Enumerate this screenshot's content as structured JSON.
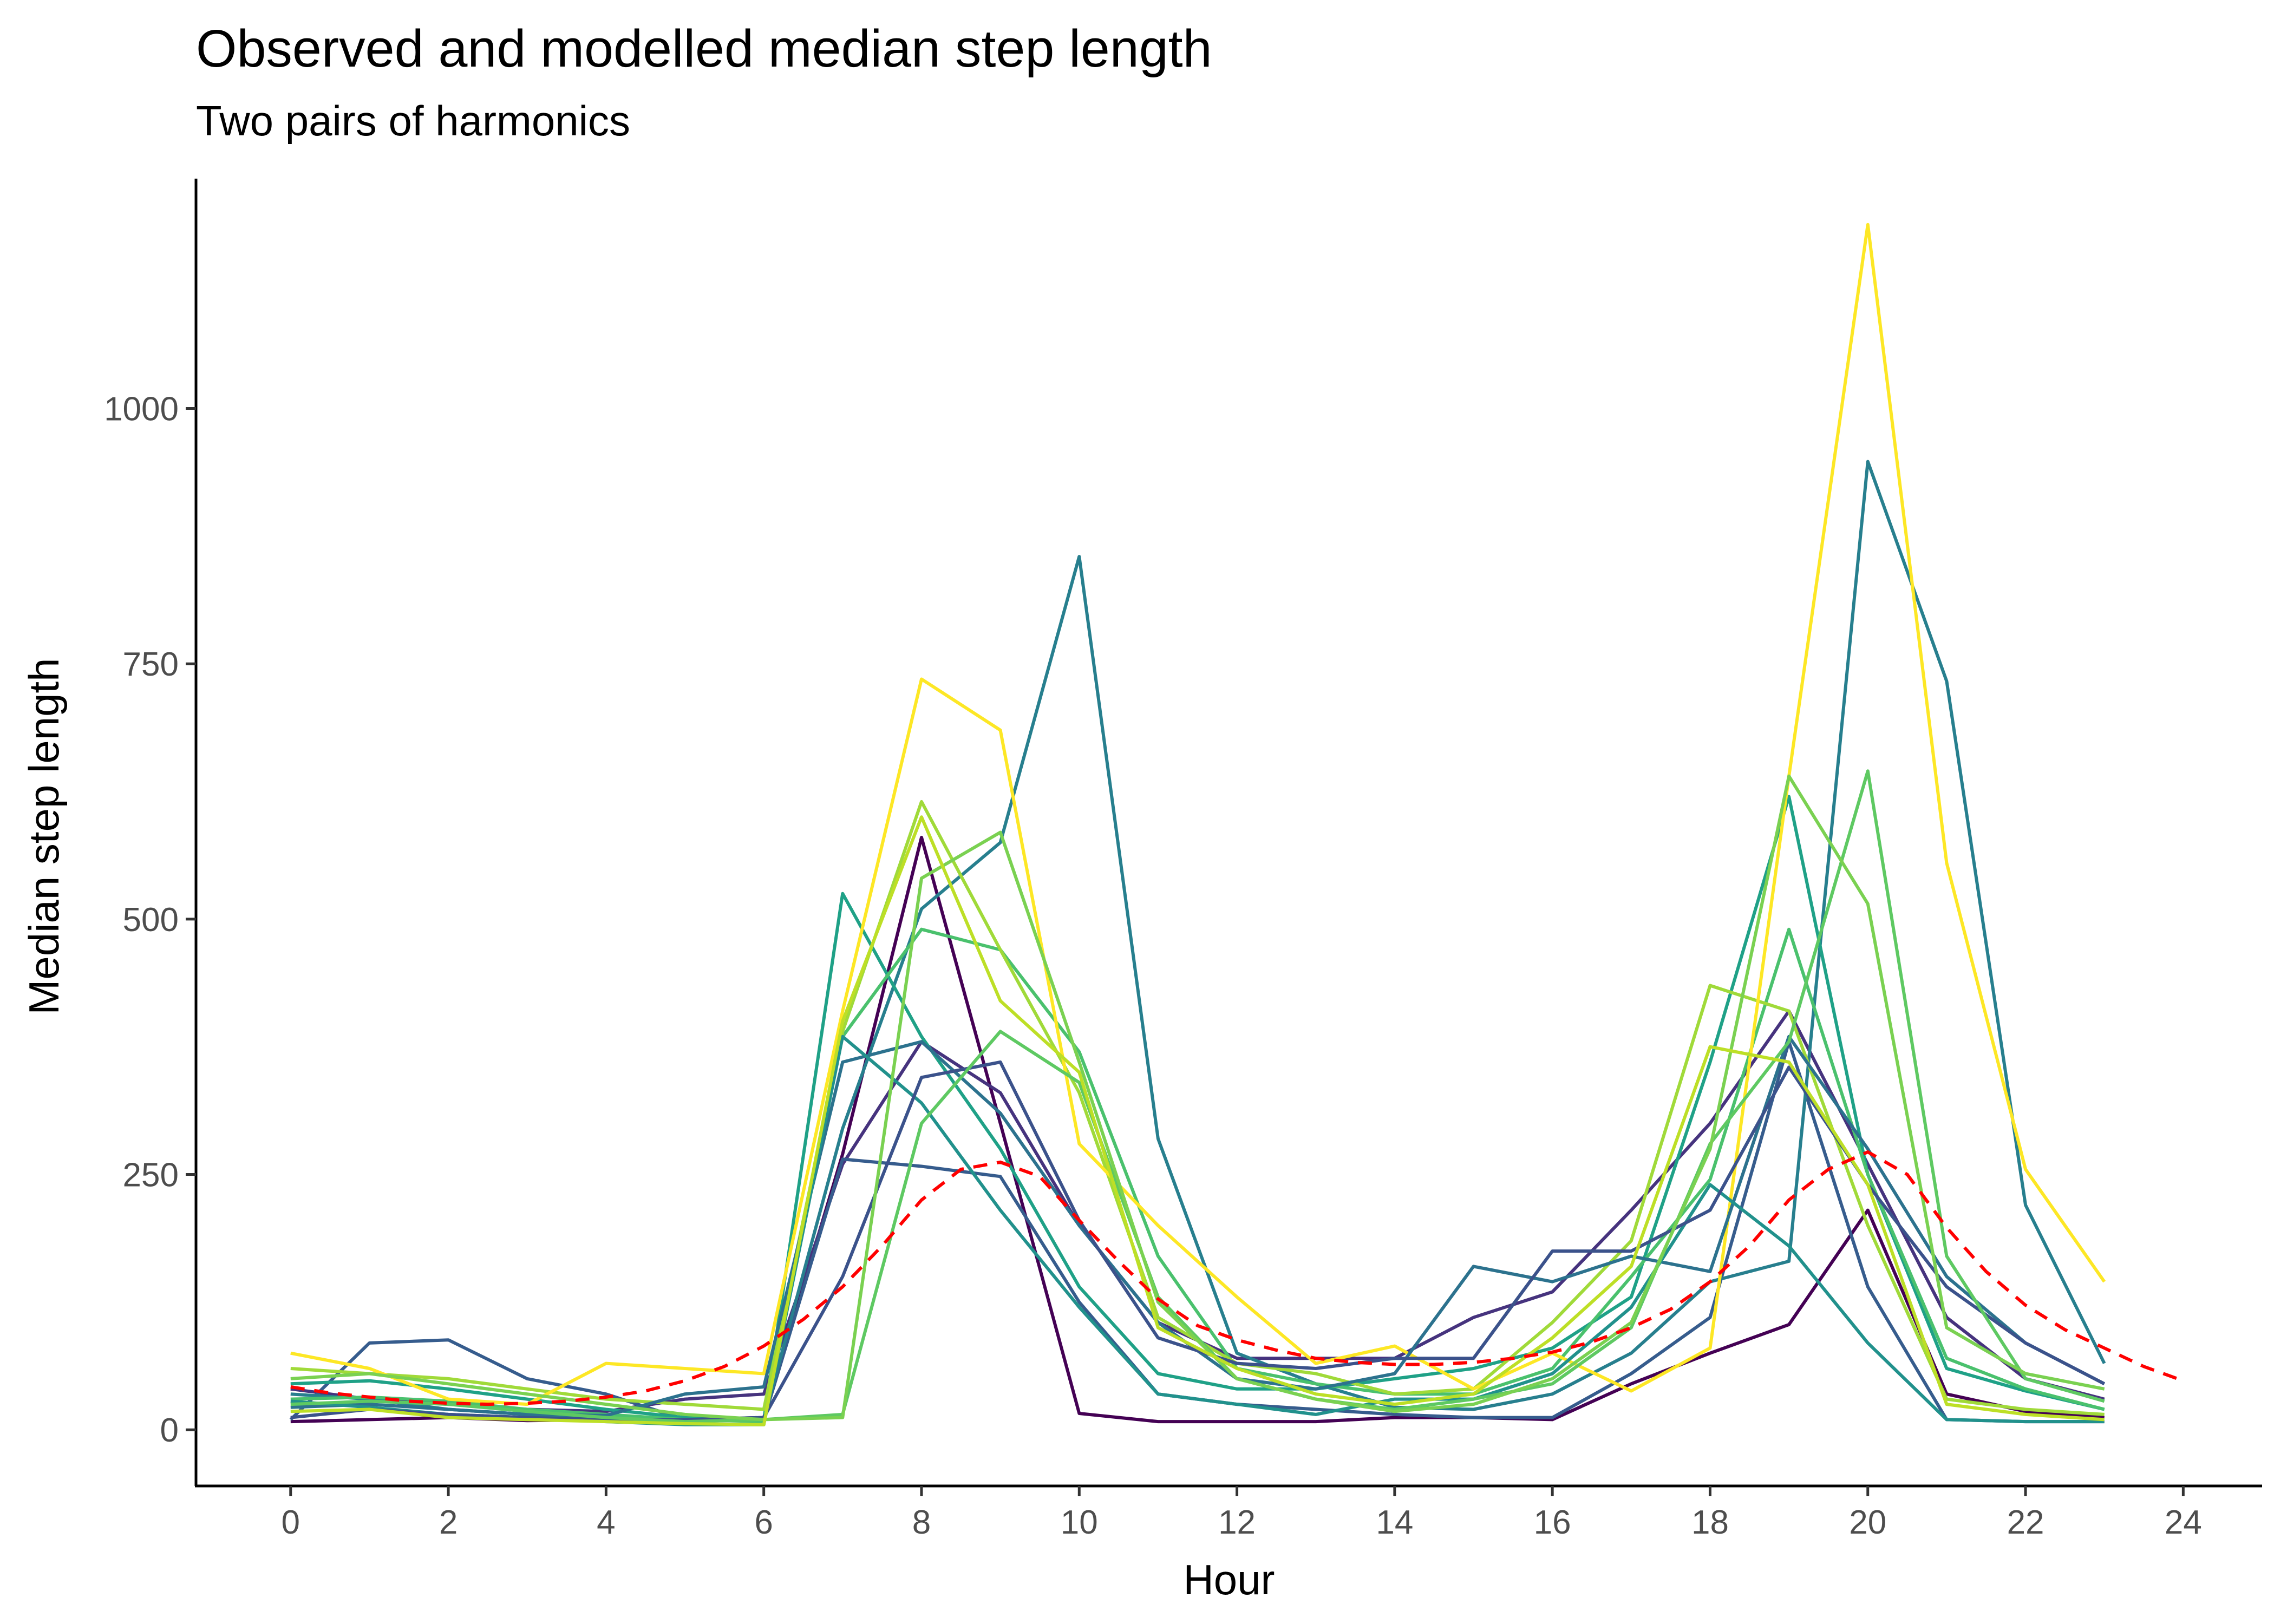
{
  "chart_data": {
    "type": "line",
    "title": "Observed and modelled median step length",
    "subtitle": "Two pairs of harmonics",
    "xlabel": "Hour",
    "ylabel": "Median step length",
    "xlim": [
      -1.2,
      25
    ],
    "ylim": [
      -55,
      1225
    ],
    "xticks": [
      "0",
      "2",
      "4",
      "6",
      "8",
      "10",
      "12",
      "14",
      "16",
      "18",
      "20",
      "22",
      "24"
    ],
    "yticks": [
      "0",
      "250",
      "500",
      "750",
      "1000"
    ],
    "x": [
      0,
      1,
      2,
      3,
      4,
      5,
      6,
      7,
      8,
      9,
      10,
      11,
      12,
      13,
      14,
      15,
      16,
      17,
      18,
      19,
      20,
      21,
      22,
      23
    ],
    "grid": false,
    "legend": "none",
    "series": [
      {
        "color": "#440154",
        "values": [
          8,
          10,
          12,
          9,
          10,
          10,
          12,
          270,
          580,
          300,
          16,
          8,
          8,
          8,
          12,
          12,
          10,
          45,
          75,
          103,
          215,
          35,
          18,
          12
        ]
      },
      {
        "color": "#46337e",
        "values": [
          40,
          30,
          25,
          20,
          18,
          30,
          35,
          260,
          380,
          330,
          200,
          105,
          70,
          70,
          70,
          110,
          135,
          215,
          300,
          410,
          260,
          110,
          50,
          30
        ]
      },
      {
        "color": "#365c8d",
        "values": [
          10,
          85,
          88,
          50,
          35,
          10,
          10,
          265,
          258,
          248,
          125,
          35,
          25,
          20,
          15,
          12,
          12,
          55,
          110,
          380,
          140,
          10,
          8,
          8
        ]
      },
      {
        "color": "#277f8e",
        "values": [
          35,
          30,
          20,
          15,
          12,
          8,
          10,
          295,
          510,
          575,
          855,
          285,
          75,
          45,
          22,
          20,
          35,
          75,
          145,
          165,
          948,
          733,
          220,
          65
        ]
      },
      {
        "color": "#1fa187",
        "values": [
          45,
          48,
          40,
          30,
          20,
          12,
          10,
          525,
          385,
          275,
          140,
          55,
          40,
          40,
          50,
          60,
          80,
          130,
          360,
          620,
          250,
          60,
          38,
          20
        ]
      },
      {
        "color": "#4ac16d",
        "values": [
          30,
          32,
          28,
          20,
          15,
          10,
          8,
          385,
          490,
          470,
          370,
          170,
          60,
          45,
          35,
          35,
          60,
          150,
          245,
          490,
          250,
          70,
          40,
          20
        ]
      },
      {
        "color": "#a0da39",
        "values": [
          60,
          55,
          50,
          40,
          30,
          25,
          20,
          390,
          615,
          470,
          330,
          110,
          65,
          55,
          35,
          40,
          105,
          185,
          435,
          410,
          200,
          30,
          20,
          15
        ]
      },
      {
        "color": "#fde725",
        "values": [
          75,
          60,
          30,
          25,
          65,
          60,
          55,
          410,
          735,
          685,
          280,
          200,
          130,
          65,
          82,
          40,
          75,
          38,
          80,
          640,
          1180,
          555,
          255,
          145
        ]
      },
      {
        "color": "#2c728e",
        "values": [
          22,
          25,
          20,
          15,
          14,
          35,
          42,
          360,
          380,
          310,
          200,
          105,
          50,
          40,
          55,
          160,
          145,
          170,
          155,
          385,
          275,
          150,
          85,
          45
        ]
      },
      {
        "color": "#21918c",
        "values": [
          28,
          22,
          15,
          12,
          8,
          5,
          5,
          385,
          320,
          215,
          120,
          35,
          25,
          15,
          30,
          30,
          55,
          120,
          240,
          180,
          85,
          10,
          8,
          8
        ]
      },
      {
        "color": "#3b528b",
        "values": [
          12,
          20,
          15,
          12,
          10,
          10,
          12,
          150,
          345,
          360,
          205,
          90,
          65,
          60,
          70,
          70,
          175,
          175,
          215,
          355,
          240,
          140,
          85,
          45
        ]
      },
      {
        "color": "#5ec962",
        "values": [
          25,
          28,
          25,
          18,
          12,
          8,
          10,
          15,
          300,
          390,
          340,
          130,
          50,
          30,
          20,
          30,
          45,
          100,
          280,
          380,
          645,
          170,
          50,
          28
        ]
      },
      {
        "color": "#7ad151",
        "values": [
          50,
          55,
          45,
          35,
          25,
          15,
          10,
          12,
          540,
          585,
          360,
          125,
          50,
          30,
          18,
          25,
          50,
          105,
          275,
          640,
          515,
          100,
          55,
          40
        ]
      },
      {
        "color": "#bddf26",
        "values": [
          18,
          20,
          12,
          10,
          8,
          6,
          5,
          400,
          600,
          420,
          350,
          100,
          60,
          35,
          25,
          35,
          90,
          160,
          375,
          360,
          240,
          25,
          15,
          10
        ]
      }
    ],
    "model": {
      "color": "#ff0000",
      "x": [
        0,
        0.5,
        1,
        1.5,
        2,
        2.5,
        3,
        3.5,
        4,
        4.5,
        5,
        5.5,
        6,
        6.5,
        7,
        7.5,
        8,
        8.5,
        9,
        9.5,
        10,
        10.5,
        11,
        11.5,
        12,
        12.5,
        13,
        13.5,
        14,
        14.5,
        15,
        15.5,
        16,
        16.5,
        17,
        17.5,
        18,
        18.5,
        19,
        19.5,
        20,
        20.5,
        21,
        21.5,
        22,
        22.5,
        23,
        23.5,
        24
      ],
      "values": [
        42,
        36,
        32,
        28,
        26,
        25,
        26,
        28,
        32,
        38,
        48,
        62,
        82,
        108,
        140,
        180,
        225,
        255,
        262,
        248,
        205,
        165,
        128,
        102,
        88,
        78,
        70,
        66,
        64,
        64,
        66,
        70,
        76,
        86,
        100,
        118,
        145,
        180,
        225,
        255,
        272,
        250,
        198,
        155,
        122,
        98,
        80,
        62,
        48
      ]
    }
  }
}
